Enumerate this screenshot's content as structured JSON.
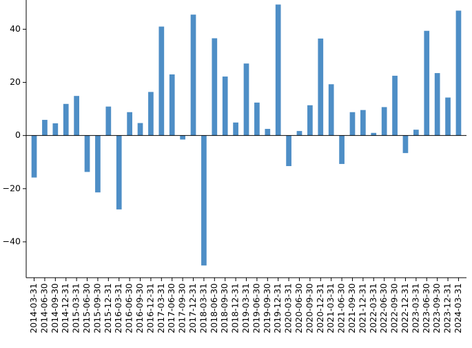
{
  "chart_data": {
    "type": "bar",
    "title": "",
    "xlabel": "",
    "ylabel": "",
    "ylim": [
      -53.5,
      51
    ],
    "yticks": [
      -40,
      -20,
      0,
      20,
      40
    ],
    "grid": false,
    "legend": "none",
    "bar_color": "#4e8ec6",
    "categories": [
      "2014-03-31",
      "2014-06-30",
      "2014-09-30",
      "2014-12-31",
      "2015-03-31",
      "2015-06-30",
      "2015-09-30",
      "2015-12-31",
      "2016-03-31",
      "2016-06-30",
      "2016-09-30",
      "2016-12-31",
      "2017-03-31",
      "2017-06-30",
      "2017-09-30",
      "2017-12-31",
      "2018-03-31",
      "2018-06-30",
      "2018-09-30",
      "2018-12-31",
      "2019-03-31",
      "2019-06-30",
      "2019-09-30",
      "2019-12-31",
      "2020-03-31",
      "2020-06-30",
      "2020-09-30",
      "2020-12-31",
      "2021-03-31",
      "2021-06-30",
      "2021-09-30",
      "2021-12-31",
      "2022-03-31",
      "2022-06-30",
      "2022-09-30",
      "2022-12-31",
      "2023-03-31",
      "2023-06-30",
      "2023-09-30",
      "2023-12-31",
      "2024-03-31"
    ],
    "values": [
      -15.8,
      5.9,
      4.6,
      11.9,
      14.9,
      -13.7,
      -21.4,
      10.9,
      -27.8,
      8.8,
      4.7,
      16.4,
      41.0,
      23.0,
      -1.5,
      45.5,
      -48.9,
      36.6,
      22.2,
      4.9,
      27.1,
      12.4,
      2.5,
      49.3,
      -11.5,
      1.7,
      11.4,
      36.5,
      19.3,
      -10.7,
      8.8,
      9.6,
      1.0,
      10.7,
      22.5,
      -6.6,
      2.2,
      39.4,
      23.5,
      14.3,
      47.0
    ]
  }
}
